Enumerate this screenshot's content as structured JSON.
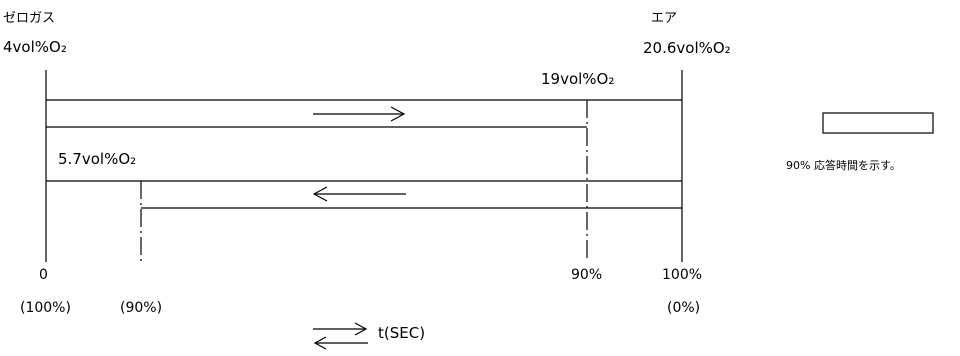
{
  "zero_gas": {
    "name": "ゼロガス",
    "value": "4vol%O₂"
  },
  "air": {
    "name": "エア",
    "value": "20.6vol%O₂"
  },
  "upper_threshold": "19vol%O₂",
  "lower_threshold": "5.7vol%O₂",
  "axis_labels": {
    "start": "0",
    "start_sub": "(100%)",
    "down_90": "(90%)",
    "up_90": "90%",
    "end": "100%",
    "end_sub": "(0%)"
  },
  "time_label": "t(SEC)",
  "legend_text": "90% 応答時間を示す。",
  "colors": {
    "line": "#000000",
    "background": "#ffffff"
  }
}
